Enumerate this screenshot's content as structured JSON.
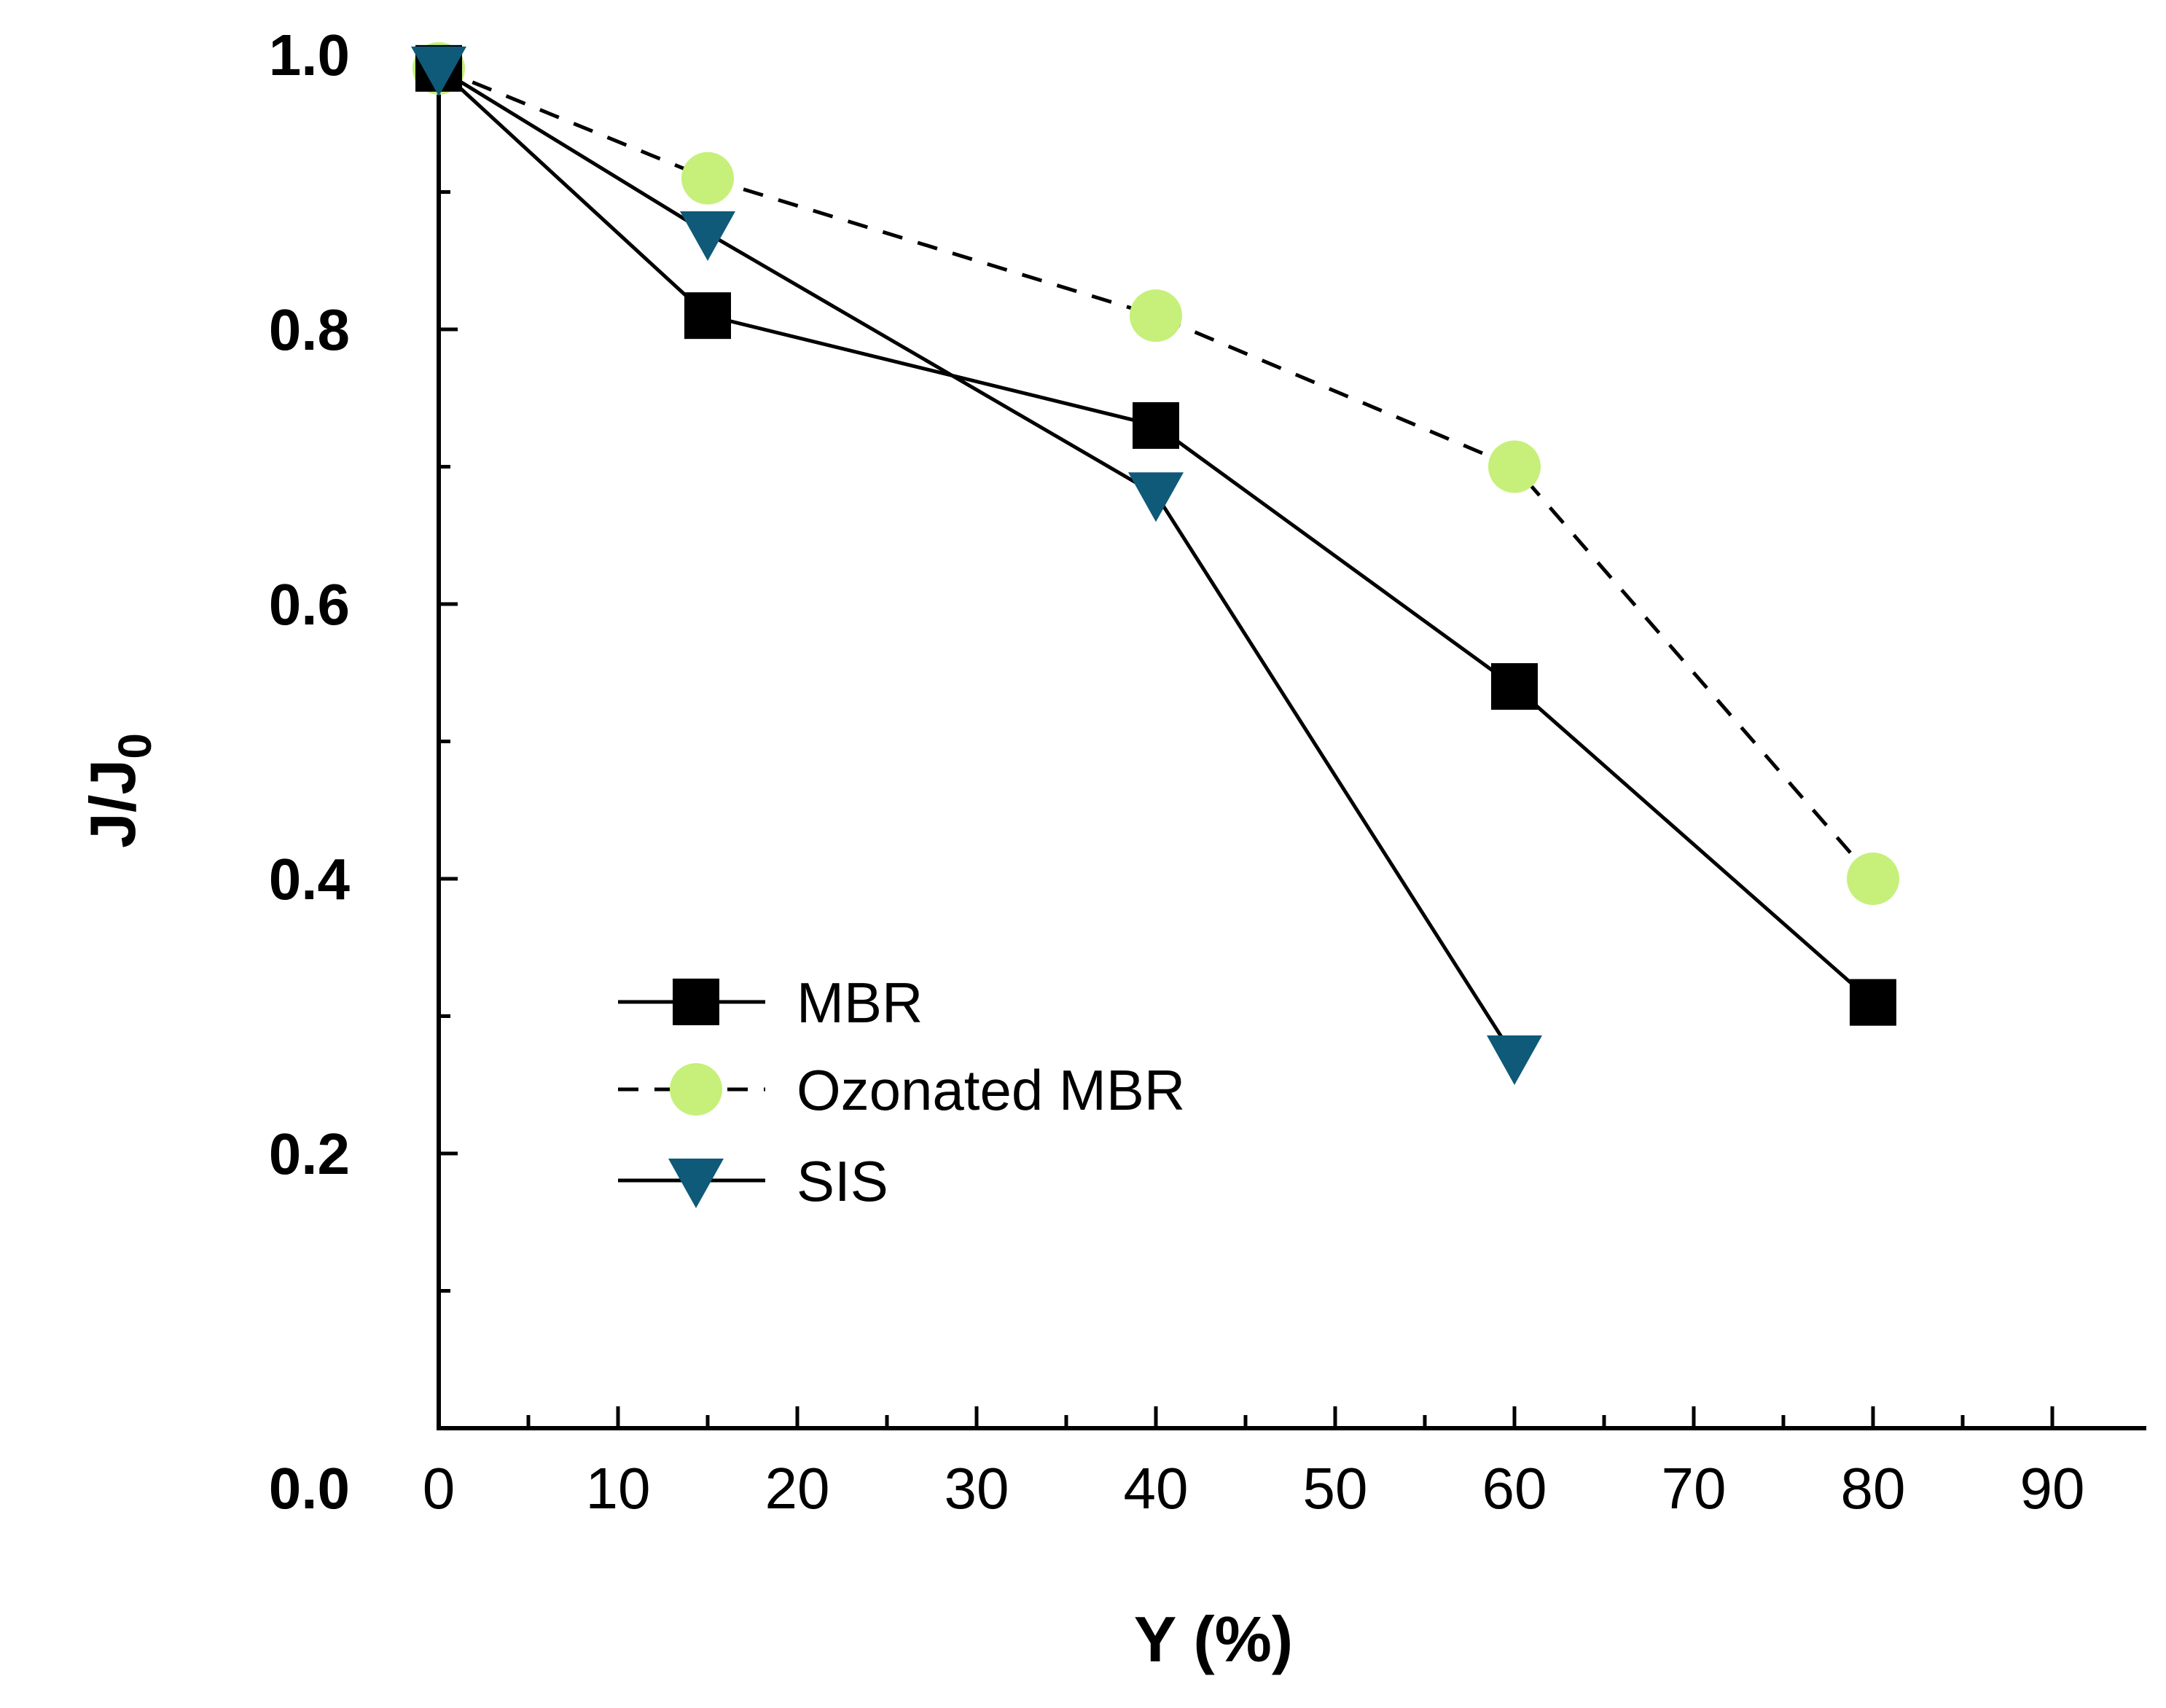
{
  "chart_data": {
    "type": "line",
    "xlabel": "Y (%)",
    "ylabel_main": "J/J",
    "ylabel_sub": "0",
    "xlim": [
      0,
      95
    ],
    "ylim": [
      0,
      1.0
    ],
    "x_ticks": [
      0,
      10,
      20,
      30,
      40,
      50,
      60,
      70,
      80,
      90
    ],
    "x_tick_labels": [
      "0",
      "10",
      "20",
      "30",
      "40",
      "50",
      "60",
      "70",
      "80",
      "90"
    ],
    "y_ticks": [
      0,
      0.2,
      0.4,
      0.6,
      0.8,
      1.0
    ],
    "y_tick_labels": [
      "0.0",
      "0.2",
      "0.4",
      "0.6",
      "0.8",
      "1.0"
    ],
    "grid": false,
    "legend_position": "center-left",
    "series": [
      {
        "name": "MBR",
        "marker": "square",
        "line": "solid",
        "color": "#000000",
        "x": [
          0,
          15,
          40,
          60,
          80
        ],
        "y": [
          0.99,
          0.81,
          0.73,
          0.54,
          0.31
        ]
      },
      {
        "name": "Ozonated MBR",
        "marker": "circle",
        "line": "dashed",
        "color": "#c6f07a",
        "x": [
          0,
          15,
          40,
          60,
          80
        ],
        "y": [
          0.99,
          0.91,
          0.81,
          0.7,
          0.4
        ]
      },
      {
        "name": "SIS",
        "marker": "triangle-down",
        "line": "solid",
        "color": "#0e5a78",
        "x": [
          0,
          15,
          40,
          60
        ],
        "y": [
          0.99,
          0.87,
          0.68,
          0.27
        ]
      }
    ]
  }
}
